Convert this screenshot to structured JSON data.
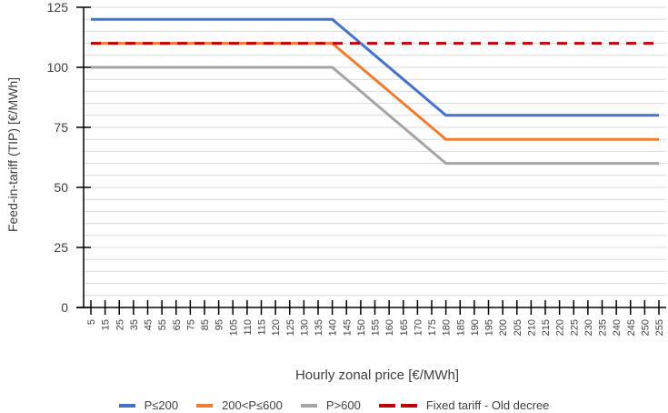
{
  "chart_data": {
    "type": "line",
    "title": "",
    "xlabel": "Hourly zonal price [€/MWh]",
    "ylabel": "Feed-in-tariff (TIP) [€/MWh]",
    "ylim": [
      0,
      125
    ],
    "yticks": [
      0,
      25,
      50,
      75,
      100,
      125
    ],
    "y_minor_grid_step": 5,
    "grid": true,
    "legend_position": "bottom",
    "categories": [
      "5",
      "15",
      "25",
      "35",
      "45",
      "55",
      "65",
      "75",
      "85",
      "95",
      "105",
      "110",
      "115",
      "120",
      "125",
      "130",
      "135",
      "140",
      "145",
      "150",
      "155",
      "160",
      "165",
      "170",
      "175",
      "180",
      "185",
      "190",
      "195",
      "200",
      "205",
      "210",
      "215",
      "220",
      "225",
      "230",
      "235",
      "240",
      "245",
      "250",
      "255"
    ],
    "series": [
      {
        "name": "P≤200",
        "color": "#4472C4",
        "style": "solid",
        "values": [
          120,
          120,
          120,
          120,
          120,
          120,
          120,
          120,
          120,
          120,
          120,
          120,
          120,
          120,
          120,
          120,
          120,
          120,
          115,
          110,
          105,
          100,
          95,
          90,
          85,
          80,
          80,
          80,
          80,
          80,
          80,
          80,
          80,
          80,
          80,
          80,
          80,
          80,
          80,
          80,
          80
        ]
      },
      {
        "name": "200<P≤600",
        "color": "#ED7D31",
        "style": "solid",
        "values": [
          110,
          110,
          110,
          110,
          110,
          110,
          110,
          110,
          110,
          110,
          110,
          110,
          110,
          110,
          110,
          110,
          110,
          110,
          105,
          100,
          95,
          90,
          85,
          80,
          75,
          70,
          70,
          70,
          70,
          70,
          70,
          70,
          70,
          70,
          70,
          70,
          70,
          70,
          70,
          70,
          70
        ]
      },
      {
        "name": "P>600",
        "color": "#A5A5A5",
        "style": "solid",
        "values": [
          100,
          100,
          100,
          100,
          100,
          100,
          100,
          100,
          100,
          100,
          100,
          100,
          100,
          100,
          100,
          100,
          100,
          100,
          95,
          90,
          85,
          80,
          75,
          70,
          65,
          60,
          60,
          60,
          60,
          60,
          60,
          60,
          60,
          60,
          60,
          60,
          60,
          60,
          60,
          60,
          60
        ]
      },
      {
        "name": "Fixed tariff - Old decree",
        "color": "#C00000",
        "style": "dashed",
        "values": [
          110,
          110,
          110,
          110,
          110,
          110,
          110,
          110,
          110,
          110,
          110,
          110,
          110,
          110,
          110,
          110,
          110,
          110,
          110,
          110,
          110,
          110,
          110,
          110,
          110,
          110,
          110,
          110,
          110,
          110,
          110,
          110,
          110,
          110,
          110,
          110,
          110,
          110,
          110,
          110,
          110
        ]
      }
    ]
  }
}
